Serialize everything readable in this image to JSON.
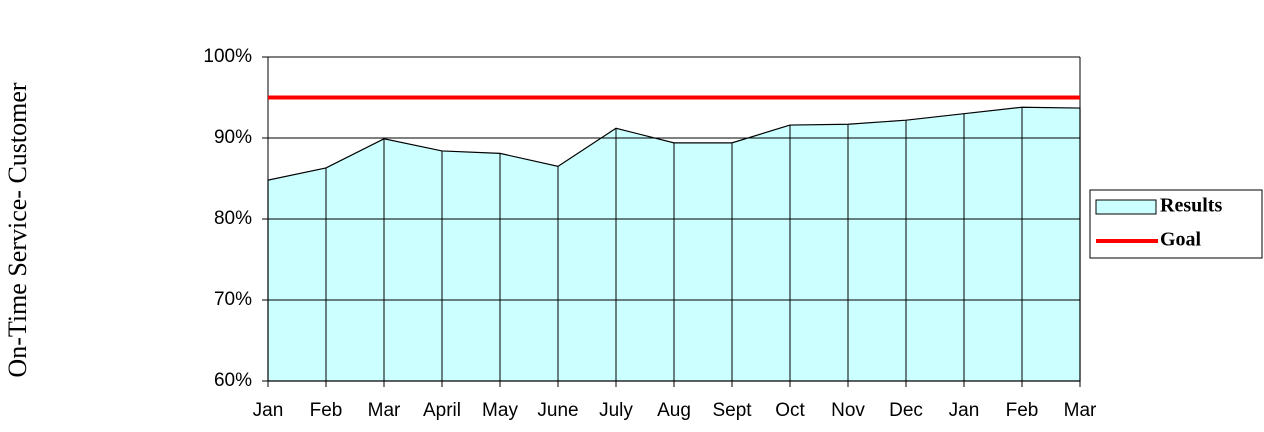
{
  "chart_data": {
    "type": "area",
    "y_axis_label": "On-Time Service- Customer",
    "categories": [
      "Jan",
      "Feb",
      "Mar",
      "April",
      "May",
      "June",
      "July",
      "Aug",
      "Sept",
      "Oct",
      "Nov",
      "Dec",
      "Jan",
      "Feb",
      "Mar"
    ],
    "series": [
      {
        "name": "Results",
        "color": "#ccffff",
        "values": [
          84.8,
          86.3,
          89.9,
          88.4,
          88.1,
          86.5,
          91.2,
          89.4,
          89.4,
          91.6,
          91.7,
          92.2,
          93.0,
          93.8,
          93.7
        ]
      },
      {
        "name": "Goal",
        "color": "#ff0000",
        "values": [
          95,
          95,
          95,
          95,
          95,
          95,
          95,
          95,
          95,
          95,
          95,
          95,
          95,
          95,
          95
        ]
      }
    ],
    "ylim": [
      60,
      100
    ],
    "yticks": [
      {
        "value": 60,
        "label": "60%"
      },
      {
        "value": 70,
        "label": "70%"
      },
      {
        "value": 80,
        "label": "80%"
      },
      {
        "value": 90,
        "label": "90%"
      },
      {
        "value": 100,
        "label": "100%"
      }
    ],
    "grid": true,
    "legend": "right"
  }
}
